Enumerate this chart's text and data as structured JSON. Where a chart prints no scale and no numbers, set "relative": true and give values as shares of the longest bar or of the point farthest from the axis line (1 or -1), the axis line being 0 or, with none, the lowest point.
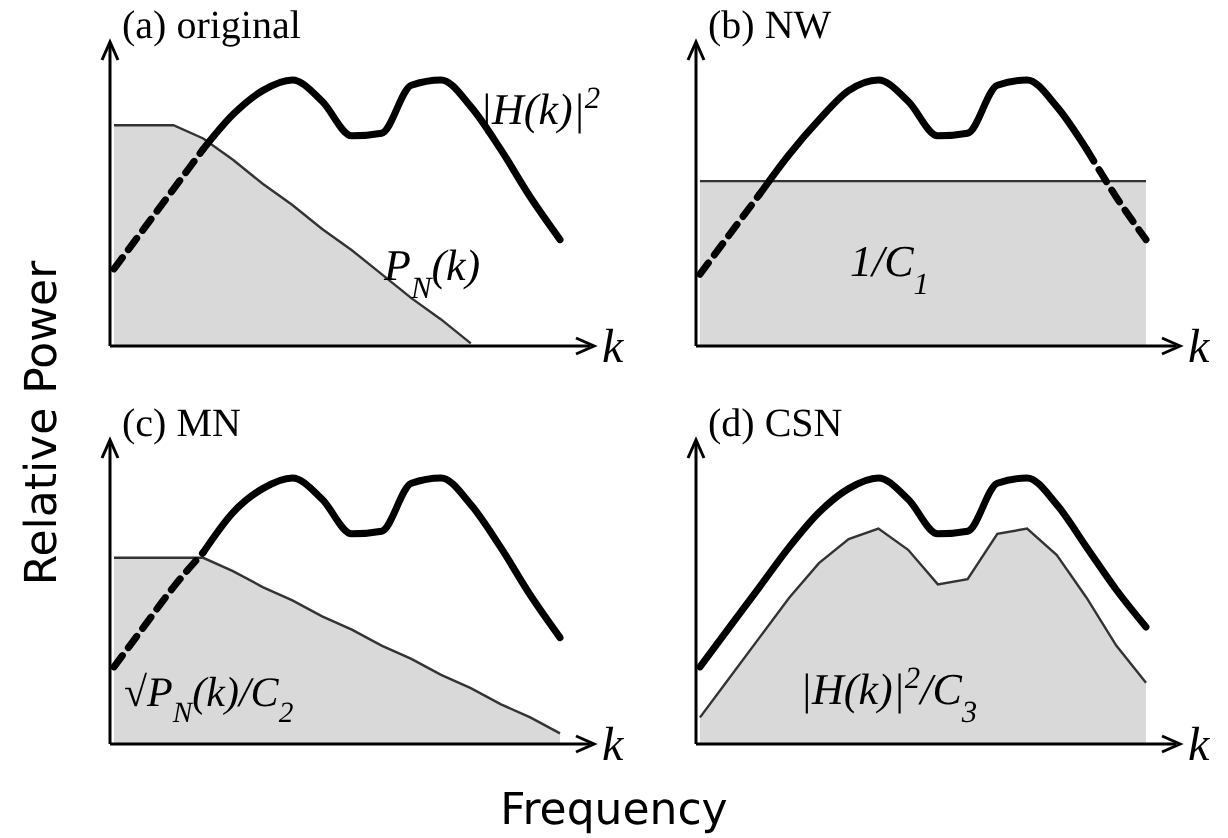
{
  "chart_data": [
    {
      "type": "line",
      "title": "(a) original",
      "ylabel": "Relative Power",
      "relative": true,
      "annotations": [
        "|H(k)|$^{2}$",
        "P$_{N}$(k)",
        "k"
      ],
      "categories": [
        null,
        null,
        null,
        null,
        null,
        null,
        null,
        null,
        null,
        null,
        null,
        null,
        null,
        null,
        null,
        null
      ],
      "series": [
        {
          "type": "area",
          "color": "#d9d9d9",
          "values": [
            0.83,
            0.83,
            0.83,
            0.78,
            0.7,
            0.61,
            0.53,
            0.44,
            0.36,
            0.27,
            0.18,
            0.1,
            0.01,
            null,
            null,
            null
          ]
        },
        {
          "line_style": "dashed",
          "color": "#000000",
          "values": [
            0.29,
            0.44,
            0.59,
            0.74,
            null,
            null,
            null,
            null,
            null,
            null,
            null,
            null,
            null,
            null,
            null,
            null
          ]
        },
        {
          "type": "line",
          "line_style": "solid",
          "color": "#000000",
          "values": [
            null,
            null,
            null,
            0.74,
            0.87,
            0.96,
            1.0,
            0.92,
            0.79,
            0.8,
            0.98,
            1.0,
            0.9,
            0.74,
            0.56,
            0.4
          ]
        }
      ]
    },
    {
      "type": "line",
      "title": "(b) NW",
      "relative": true,
      "annotations": [
        "1/C$_{1}$",
        "k"
      ],
      "categories": [
        null,
        null,
        null,
        null,
        null,
        null,
        null,
        null,
        null,
        null,
        null,
        null,
        null,
        null,
        null,
        null
      ],
      "series": [
        {
          "type": "area",
          "color": "#d9d9d9",
          "values": [
            0.62,
            0.62,
            0.62,
            0.62,
            0.62,
            0.62,
            0.62,
            0.62,
            0.62,
            0.62,
            0.62,
            0.62,
            0.62,
            0.62,
            0.62,
            0.62
          ]
        },
        {
          "line_style": "dashed",
          "color": "#000000",
          "values": [
            0.27,
            0.42,
            0.57,
            null,
            null,
            null,
            null,
            null,
            null,
            null,
            null,
            null,
            null,
            null,
            null,
            null
          ]
        },
        {
          "type": "line",
          "line_style": "solid",
          "color": "#000000",
          "values": [
            null,
            null,
            0.57,
            0.72,
            0.85,
            0.96,
            1.0,
            0.92,
            0.79,
            0.8,
            0.98,
            1.0,
            0.9,
            0.74,
            null,
            null
          ]
        },
        {
          "type": "line",
          "line_style": "dashed",
          "color": "#000000",
          "values": [
            null,
            null,
            null,
            null,
            null,
            null,
            null,
            null,
            null,
            null,
            null,
            null,
            null,
            0.74,
            0.56,
            0.4
          ]
        }
      ]
    },
    {
      "type": "line",
      "title": "(c) MN",
      "xlabel": "Frequency",
      "relative": true,
      "annotations": [
        "√P$_{N}$(k)/C$_{2}$",
        "k"
      ],
      "categories": [
        null,
        null,
        null,
        null,
        null,
        null,
        null,
        null,
        null,
        null,
        null,
        null,
        null,
        null,
        null,
        null
      ],
      "series": [
        {
          "type": "area",
          "color": "#d9d9d9",
          "values": [
            0.7,
            0.7,
            0.7,
            0.7,
            0.65,
            0.59,
            0.54,
            0.48,
            0.43,
            0.37,
            0.32,
            0.26,
            0.21,
            0.15,
            0.1,
            0.04
          ]
        },
        {
          "line_style": "dashed",
          "color": "#000000",
          "values": [
            0.29,
            0.44,
            0.59,
            0.72,
            null,
            null,
            null,
            null,
            null,
            null,
            null,
            null,
            null,
            null,
            null,
            null
          ]
        },
        {
          "type": "line",
          "line_style": "solid",
          "color": "#000000",
          "values": [
            null,
            null,
            null,
            0.72,
            0.87,
            0.96,
            1.0,
            0.92,
            0.79,
            0.8,
            0.98,
            1.0,
            0.9,
            0.74,
            0.56,
            0.4
          ]
        }
      ]
    },
    {
      "type": "line",
      "title": "(d) CSN",
      "relative": true,
      "annotations": [
        "|H(k)|$^{2}$/C$_{3}$",
        "k"
      ],
      "categories": [
        null,
        null,
        null,
        null,
        null,
        null,
        null,
        null,
        null,
        null,
        null,
        null,
        null,
        null,
        null,
        null
      ],
      "series": [
        {
          "type": "area",
          "color": "#d9d9d9",
          "values": [
            0.1,
            0.25,
            0.4,
            0.55,
            0.68,
            0.77,
            0.81,
            0.73,
            0.6,
            0.62,
            0.79,
            0.81,
            0.71,
            0.55,
            0.37,
            0.23
          ]
        },
        {
          "line_style": "solid",
          "color": "#000000",
          "values": [
            0.29,
            0.44,
            0.59,
            0.74,
            0.87,
            0.96,
            1.0,
            0.92,
            0.79,
            0.8,
            0.98,
            1.0,
            0.9,
            0.74,
            0.58,
            0.44
          ]
        }
      ]
    }
  ]
}
